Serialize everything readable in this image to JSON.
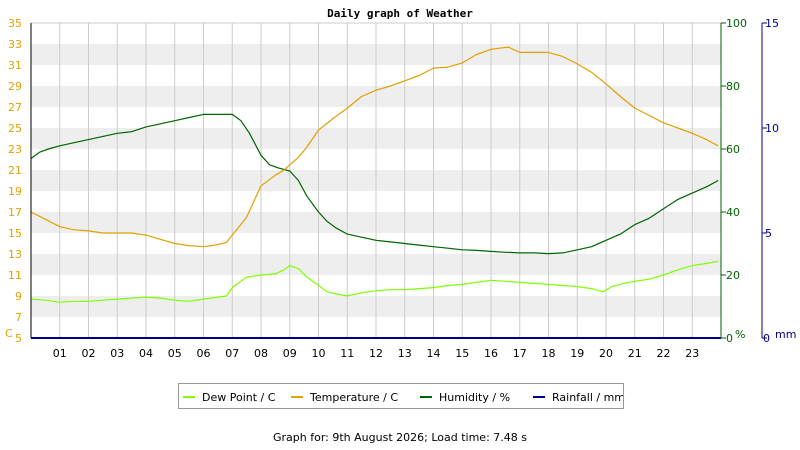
{
  "chart_data": {
    "type": "line",
    "title": "Daily graph of Weather",
    "x_unit": "hour of day",
    "x_range": [
      0,
      24
    ],
    "x_tick_labels": [
      "01",
      "02",
      "03",
      "04",
      "05",
      "06",
      "07",
      "08",
      "09",
      "10",
      "11",
      "12",
      "13",
      "14",
      "15",
      "16",
      "17",
      "18",
      "19",
      "20",
      "21",
      "22",
      "23"
    ],
    "axes": {
      "temperature": {
        "unit_label": "C",
        "range": [
          5,
          35
        ],
        "ticks": [
          "5",
          "7",
          "9",
          "11",
          "13",
          "15",
          "17",
          "19",
          "21",
          "23",
          "25",
          "27",
          "29",
          "31",
          "33",
          "35"
        ],
        "color": "#e3a000"
      },
      "humidity": {
        "unit_label": "%",
        "range": [
          0,
          100
        ],
        "ticks": [
          "0",
          "20",
          "40",
          "60",
          "80",
          "100"
        ],
        "color": "#006400"
      },
      "rainfall": {
        "unit_label": "mm",
        "range": [
          0,
          15
        ],
        "ticks": [
          "0",
          "5",
          "10",
          "15"
        ],
        "color": "#00008b"
      }
    },
    "grid": "alternating horizontal bands, vertical hour lines",
    "legend_placement": "bottom-center",
    "series": [
      {
        "name": "Dew Point / C",
        "axis": "temperature",
        "color": "#7fff00",
        "x": [
          0,
          0.5,
          1,
          1.5,
          2,
          2.5,
          3,
          3.5,
          4,
          4.5,
          5,
          5.5,
          6,
          6.5,
          6.8,
          7,
          7.5,
          8,
          8.5,
          8.8,
          9,
          9.3,
          9.6,
          10,
          10.3,
          10.6,
          11,
          11.5,
          12,
          12.5,
          13,
          13.5,
          14,
          14.5,
          15,
          15.5,
          16,
          16.5,
          17,
          17.5,
          18,
          18.5,
          19,
          19.5,
          19.9,
          20.2,
          20.6,
          21,
          21.5,
          22,
          22.5,
          23,
          23.5,
          23.9
        ],
        "y": [
          8.7,
          8.6,
          8.4,
          8.5,
          8.5,
          8.6,
          8.7,
          8.8,
          8.9,
          8.8,
          8.6,
          8.5,
          8.7,
          8.9,
          9.0,
          9.8,
          10.8,
          11.0,
          11.1,
          11.5,
          11.9,
          11.6,
          10.8,
          10.0,
          9.4,
          9.2,
          9.0,
          9.3,
          9.5,
          9.6,
          9.6,
          9.7,
          9.8,
          10.0,
          10.1,
          10.3,
          10.5,
          10.4,
          10.3,
          10.2,
          10.1,
          10.0,
          9.9,
          9.7,
          9.4,
          9.9,
          10.2,
          10.4,
          10.6,
          11.0,
          11.5,
          11.9,
          12.1,
          12.3
        ]
      },
      {
        "name": "Temperature / C",
        "axis": "temperature",
        "color": "#e3a000",
        "x": [
          0,
          0.5,
          1,
          1.5,
          2,
          2.5,
          3,
          3.5,
          4,
          4.5,
          5,
          5.5,
          6,
          6.5,
          6.8,
          7,
          7.5,
          8,
          8.5,
          8.8,
          9,
          9.3,
          9.6,
          10,
          10.5,
          11,
          11.5,
          12,
          12.5,
          13,
          13.5,
          14,
          14.5,
          15,
          15.5,
          16,
          16.3,
          16.6,
          17,
          17.5,
          18,
          18.5,
          19,
          19.5,
          20,
          20.5,
          21,
          21.5,
          22,
          22.5,
          23,
          23.5,
          23.9
        ],
        "y": [
          17.0,
          16.3,
          15.6,
          15.3,
          15.2,
          15.0,
          15.0,
          15.0,
          14.8,
          14.4,
          14.0,
          13.8,
          13.7,
          13.9,
          14.1,
          14.8,
          16.5,
          19.5,
          20.5,
          21.0,
          21.5,
          22.2,
          23.2,
          24.8,
          25.9,
          26.9,
          28.0,
          28.6,
          29.0,
          29.5,
          30.0,
          30.7,
          30.8,
          31.2,
          32.0,
          32.5,
          32.6,
          32.7,
          32.2,
          32.2,
          32.2,
          31.8,
          31.1,
          30.3,
          29.2,
          28.0,
          26.9,
          26.2,
          25.5,
          25.0,
          24.5,
          23.9,
          23.3
        ]
      },
      {
        "name": "Humidity / %",
        "axis": "humidity",
        "color": "#006400",
        "x": [
          0,
          0.3,
          0.6,
          1,
          1.5,
          2,
          2.5,
          3,
          3.5,
          4,
          4.5,
          5,
          5.5,
          6,
          6.5,
          7,
          7.3,
          7.6,
          8,
          8.3,
          8.6,
          9,
          9.3,
          9.6,
          10,
          10.3,
          10.6,
          11,
          11.5,
          12,
          12.5,
          13,
          13.5,
          14,
          14.5,
          15,
          15.5,
          16,
          16.5,
          17,
          17.5,
          18,
          18.5,
          19,
          19.5,
          20,
          20.5,
          21,
          21.5,
          22,
          22.5,
          23,
          23.5,
          23.9
        ],
        "y": [
          57,
          59,
          60,
          61,
          62,
          63,
          64,
          65,
          65.5,
          67,
          68,
          69,
          70,
          71,
          71,
          71,
          69,
          65,
          58,
          55,
          54,
          53,
          50,
          45,
          40,
          37,
          35,
          33,
          32,
          31,
          30.5,
          30,
          29.5,
          29,
          28.5,
          28,
          27.8,
          27.5,
          27.2,
          27,
          27,
          26.8,
          27,
          28,
          29,
          31,
          33,
          36,
          38,
          41,
          44,
          46,
          48,
          50
        ]
      },
      {
        "name": "Rainfall / mm",
        "axis": "rainfall",
        "color": "#00008b",
        "x": [
          0,
          24
        ],
        "y": [
          0,
          0
        ]
      }
    ],
    "footer_label": "Graph for: 9th August 2026; Load time: 7.48 s"
  }
}
